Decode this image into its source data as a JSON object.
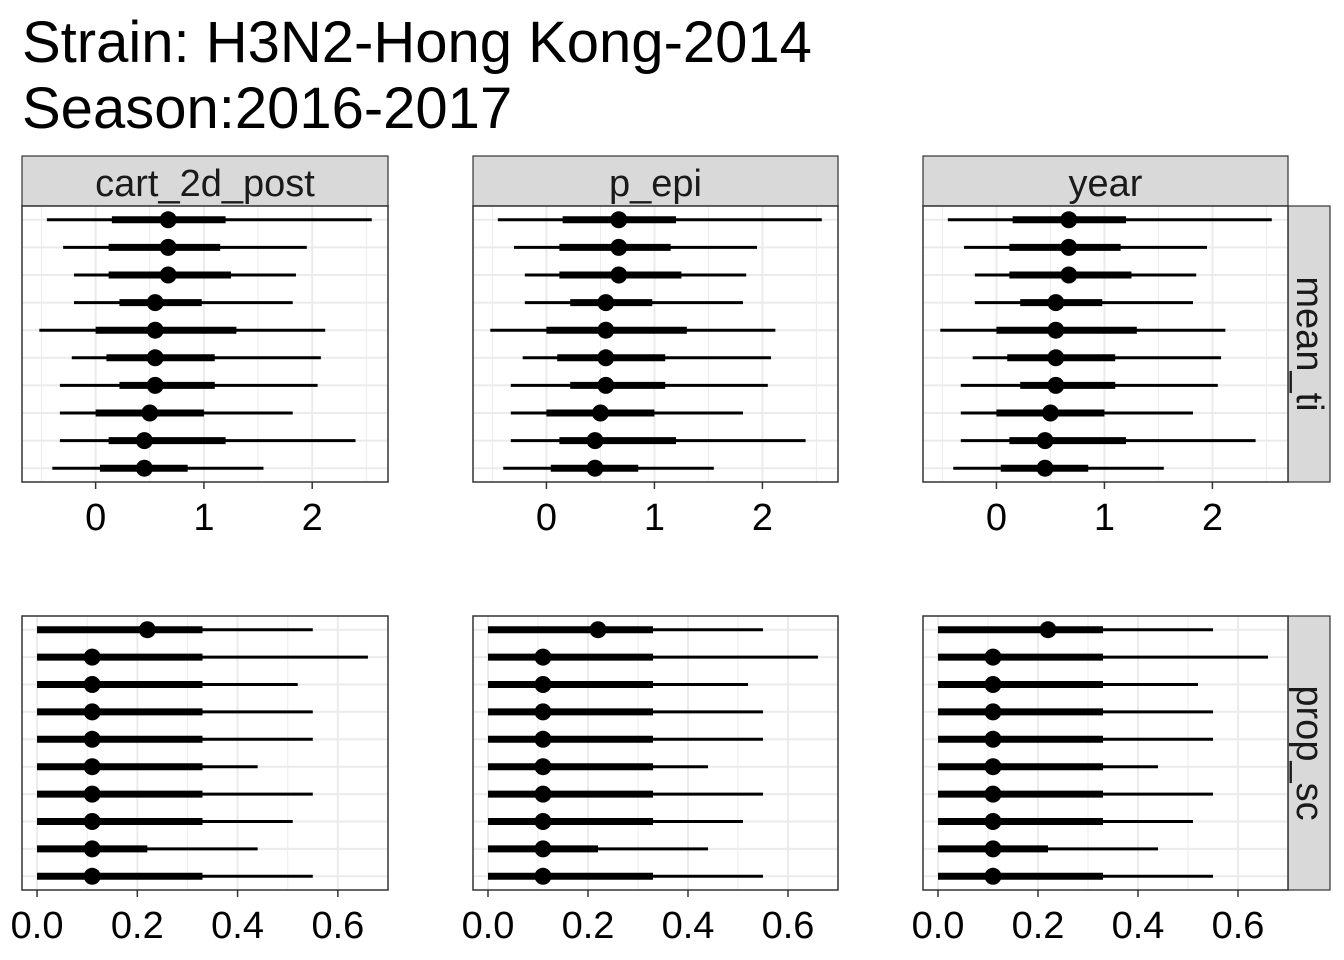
{
  "title": "Strain: H3N2-Hong Kong-2014",
  "subtitle": "Season:2016-2017",
  "chart_data": {
    "type": "forest",
    "facet_columns": [
      "cart_2d_post",
      "p_epi",
      "year"
    ],
    "facet_rows": [
      "mean_ti",
      "prop_sc"
    ],
    "panels": {
      "mean_ti": {
        "xlim": [
          -0.68,
          2.7
        ],
        "xticks": [
          0,
          1,
          2
        ],
        "tick_labels": [
          "0",
          "1",
          "2"
        ],
        "intervals": [
          {
            "point": 0.67,
            "inner": [
              0.15,
              1.2
            ],
            "outer": [
              -0.45,
              2.55
            ]
          },
          {
            "point": 0.67,
            "inner": [
              0.12,
              1.15
            ],
            "outer": [
              -0.3,
              1.95
            ]
          },
          {
            "point": 0.67,
            "inner": [
              0.12,
              1.25
            ],
            "outer": [
              -0.2,
              1.85
            ]
          },
          {
            "point": 0.55,
            "inner": [
              0.22,
              0.98
            ],
            "outer": [
              -0.2,
              1.82
            ]
          },
          {
            "point": 0.55,
            "inner": [
              0.0,
              1.3
            ],
            "outer": [
              -0.52,
              2.12
            ]
          },
          {
            "point": 0.55,
            "inner": [
              0.1,
              1.1
            ],
            "outer": [
              -0.22,
              2.08
            ]
          },
          {
            "point": 0.55,
            "inner": [
              0.22,
              1.1
            ],
            "outer": [
              -0.33,
              2.05
            ]
          },
          {
            "point": 0.5,
            "inner": [
              0.0,
              1.0
            ],
            "outer": [
              -0.33,
              1.82
            ]
          },
          {
            "point": 0.45,
            "inner": [
              0.12,
              1.2
            ],
            "outer": [
              -0.33,
              2.4
            ]
          },
          {
            "point": 0.45,
            "inner": [
              0.04,
              0.85
            ],
            "outer": [
              -0.4,
              1.55
            ]
          }
        ]
      },
      "prop_sc": {
        "xlim": [
          -0.03,
          0.7
        ],
        "xticks": [
          0,
          0.2,
          0.4,
          0.6
        ],
        "tick_labels": [
          "0.0",
          "0.2",
          "0.4",
          "0.6"
        ],
        "intervals": [
          {
            "point": 0.22,
            "inner": [
              0.0,
              0.33
            ],
            "outer": [
              0.0,
              0.55
            ]
          },
          {
            "point": 0.11,
            "inner": [
              0.0,
              0.33
            ],
            "outer": [
              0.0,
              0.66
            ]
          },
          {
            "point": 0.11,
            "inner": [
              0.0,
              0.33
            ],
            "outer": [
              0.0,
              0.52
            ]
          },
          {
            "point": 0.11,
            "inner": [
              0.0,
              0.33
            ],
            "outer": [
              0.0,
              0.55
            ]
          },
          {
            "point": 0.11,
            "inner": [
              0.0,
              0.33
            ],
            "outer": [
              0.0,
              0.55
            ]
          },
          {
            "point": 0.11,
            "inner": [
              0.0,
              0.33
            ],
            "outer": [
              0.0,
              0.44
            ]
          },
          {
            "point": 0.11,
            "inner": [
              0.0,
              0.33
            ],
            "outer": [
              0.0,
              0.55
            ]
          },
          {
            "point": 0.11,
            "inner": [
              0.0,
              0.33
            ],
            "outer": [
              0.0,
              0.51
            ]
          },
          {
            "point": 0.11,
            "inner": [
              0.0,
              0.22
            ],
            "outer": [
              0.0,
              0.44
            ]
          },
          {
            "point": 0.11,
            "inner": [
              0.0,
              0.33
            ],
            "outer": [
              0.0,
              0.55
            ]
          }
        ]
      }
    },
    "grid": true,
    "strip_color": "#d9d9d9",
    "grid_color": "#ebebeb"
  }
}
